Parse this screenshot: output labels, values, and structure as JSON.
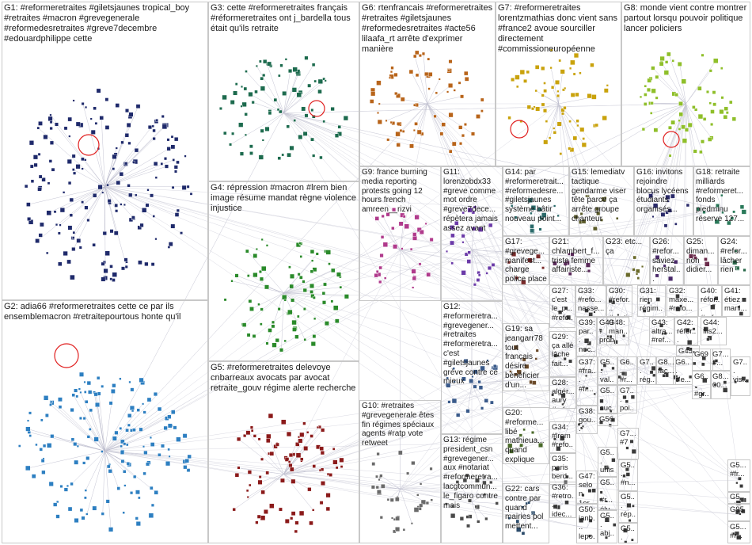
{
  "groups": [
    {
      "id": "G1",
      "label": "G1: #reformeretraites #giletsjaunes tropical_boy #retraites #macron #grevegenerale #reformedesretraites #greve7decembre #edouardphilippe cette",
      "color": "#1f2a6b"
    },
    {
      "id": "G2",
      "label": "G2: adia66 #reformeretraites cette ce par ils ensemblemacron #retraitepourtous honte qu'il",
      "color": "#2d7fc1"
    },
    {
      "id": "G3",
      "label": "G3: cette #reformeretraites français #réformeretraites ont j_bardella tous était qu'ils retraite",
      "color": "#1d6b4e"
    },
    {
      "id": "G4",
      "label": "G4: répression #macron #lrem bien image résume mandat règne violence injustice",
      "color": "#2a8a2a"
    },
    {
      "id": "G5",
      "label": "G5: #reformeretraites delevoye cnbarreaux avocats par avocat retraite_gouv régime alerte recherche",
      "color": "#8b1a1a"
    },
    {
      "id": "G6",
      "label": "G6: rtenfrancais #reformeretraites #retraites #giletsjaunes #reformedesretraites #acte56 lilaafa_rt arrête d'exprimer manière",
      "color": "#b8641a"
    },
    {
      "id": "G7",
      "label": "G7: #reformeretraites lorentzmathias donc vient sans #france2 avoue sourciller directement #commissioneuropéenne",
      "color": "#c9a20c"
    },
    {
      "id": "G8",
      "label": "G8: monde vient contre montrer partout lorsqu pouvoir politique lancer policiers",
      "color": "#8fbf2a"
    },
    {
      "id": "G9",
      "label": "G9: france burning media reporting protests going 12 hours french amreen__rizvi",
      "color": "#b03a8c"
    },
    {
      "id": "G10",
      "label": "G10: #retraites #grevegenerale êtes fin régimes spéciaux agents #ratp vote retweet",
      "color": "#6a6a6a"
    },
    {
      "id": "G11",
      "label": "G11: lorenzobdx33 #greve comme mot ordre #greve7dece... répètera jamais assez avant",
      "color": "#6b3aa8"
    },
    {
      "id": "G12",
      "label": "G12: #reformeretra... #grevegener... #retraites #reformeretra... c'est #giletsjaunes grève contre ce mieux",
      "color": "#3a5a8a"
    },
    {
      "id": "G13",
      "label": "G13: régime president_csn #grevegener... aux #notariat #reformeretra... lacgtcommun... le_figaro contre mais",
      "color": "#4a4a4a"
    },
    {
      "id": "G14",
      "label": "G14: par #reformeretrait... #reformedesre... #giletsjaunes système bâtir nouveau point...",
      "color": "#2a6a6a"
    },
    {
      "id": "G15",
      "label": "G15: lemediatv tactique gendarme viser tête parce ça arrête groupe chanteur",
      "color": "#5a5a2a"
    },
    {
      "id": "G16",
      "label": "G16: invitons rejoindre blocus lycéens étudiants organisés...",
      "color": "#2a2a6a"
    },
    {
      "id": "G17",
      "label": "G17: #grevege... manifest... charge police place république paris...",
      "color": "#7a2a2a"
    },
    {
      "id": "G18",
      "label": "G18: retraite milliards #reformeret... fonds piedminu réserve 127...",
      "color": "#2a7a5a"
    },
    {
      "id": "G19",
      "label": "G19: sa jeangarr78 tout français désire bénéficier d'un...",
      "color": "#6a4a2a"
    },
    {
      "id": "G20",
      "label": "G20: #reforme... libé mathieua... quand explique les...",
      "color": "#4a6a2a"
    },
    {
      "id": "G21",
      "label": "G21: chlambert_f... triste femme affairiste...",
      "color": "#5a2a5a"
    },
    {
      "id": "G22",
      "label": "G22: cars contre par quand mairies pol mettent...",
      "color": "#2a4a6a"
    },
    {
      "id": "G23",
      "label": "G23: etc... ça",
      "color": "#6a6a2a"
    },
    {
      "id": "G24",
      "label": "G24: #refor... lâcher rien",
      "color": "#2a6a4a"
    },
    {
      "id": "G25",
      "label": "G25: diman... non didier...",
      "color": "#6a2a4a"
    },
    {
      "id": "G26",
      "label": "G26: #refor... saviez herstal...",
      "color": "#4a2a6a"
    },
    {
      "id": "G27",
      "label": "G27: c'est le_p... #refo...",
      "color": "#3a3a3a"
    },
    {
      "id": "G28",
      "label": "G28: algér... aury #refo...",
      "color": "#3a3a3a"
    },
    {
      "id": "G29",
      "label": "G29: ça allé lâche fait...",
      "color": "#3a3a3a"
    },
    {
      "id": "G30",
      "label": "G30: #refor... #routi...",
      "color": "#3a3a3a"
    },
    {
      "id": "G31",
      "label": "G31: rien régim...",
      "color": "#3a3a3a"
    },
    {
      "id": "G32",
      "label": "G32: maxe... #refo...",
      "color": "#3a3a3a"
    },
    {
      "id": "G33",
      "label": "G33: #refo... nasse...",
      "color": "#3a3a3a"
    },
    {
      "id": "G34",
      "label": "G34: #lrem #refo...",
      "color": "#3a3a3a"
    },
    {
      "id": "G35",
      "label": "G35: paris berd...",
      "color": "#3a3a3a"
    },
    {
      "id": "G36",
      "label": "G36: #retro... idec...",
      "color": "#3a3a3a"
    },
    {
      "id": "G37",
      "label": "G37: #fra... #fr...",
      "color": "#3a3a3a"
    },
    {
      "id": "G38",
      "label": "G38: gou... exp...",
      "color": "#3a3a3a"
    },
    {
      "id": "G39",
      "label": "G39: par... noc...",
      "color": "#3a3a3a"
    },
    {
      "id": "G40",
      "label": "G40: réfor... #refo...",
      "color": "#3a3a3a"
    },
    {
      "id": "G41",
      "label": "G41: étiez mani...",
      "color": "#3a3a3a"
    },
    {
      "id": "G42",
      "label": "G42: réfor...",
      "color": "#3a3a3a"
    },
    {
      "id": "G43",
      "label": "G43: altra... #ref...",
      "color": "#3a3a3a"
    },
    {
      "id": "G44",
      "label": "G44: fils2...",
      "color": "#3a3a3a"
    },
    {
      "id": "G45",
      "label": "G45",
      "color": "#3a3a3a"
    },
    {
      "id": "G47",
      "label": "G47: selon 1er...",
      "color": "#3a3a3a"
    },
    {
      "id": "G48",
      "label": "G48: man...",
      "color": "#3a3a3a"
    },
    {
      "id": "G49",
      "label": "G49: prob...",
      "color": "#3a3a3a"
    },
    {
      "id": "G50",
      "label": "G50: ianb... lepo...",
      "color": "#3a3a3a"
    },
    {
      "id": "G56",
      "label": "G56",
      "color": "#3a3a3a"
    },
    {
      "id": "G69",
      "label": "G69",
      "color": "#3a3a3a"
    },
    {
      "id": "G95",
      "label": "G95",
      "color": "#3a3a3a"
    },
    {
      "id": "G7x",
      "label": "G7... #7",
      "color": "#3a3a3a"
    },
    {
      "id": "G5a",
      "label": "G5... val...",
      "color": "#3a3a3a"
    },
    {
      "id": "G5b",
      "label": "G5... suc...",
      "color": "#3a3a3a"
    },
    {
      "id": "G5c",
      "label": "G5... unis pe...",
      "color": "#3a3a3a"
    },
    {
      "id": "G5d",
      "label": "G5... #r... élu...",
      "color": "#3a3a3a"
    },
    {
      "id": "G5e",
      "label": "G5... abj...",
      "color": "#3a3a3a"
    },
    {
      "id": "G6a",
      "label": "G6... #r...",
      "color": "#3a3a3a"
    },
    {
      "id": "G6b",
      "label": "G6... c'e...",
      "color": "#3a3a3a"
    },
    {
      "id": "G6c",
      "label": "G6... #gr...",
      "color": "#3a3a3a"
    },
    {
      "id": "G7a",
      "label": "G7... poi...",
      "color": "#3a3a3a"
    },
    {
      "id": "G7b",
      "label": "G7... #...",
      "color": "#3a3a3a"
    },
    {
      "id": "G7c",
      "label": "G7... rég...",
      "color": "#3a3a3a"
    },
    {
      "id": "G7d",
      "label": "G7... vis...",
      "color": "#3a3a3a"
    },
    {
      "id": "G8a",
      "label": "G8... fac...",
      "color": "#3a3a3a"
    },
    {
      "id": "G8b",
      "label": "G8... 00...",
      "color": "#3a3a3a"
    },
    {
      "id": "G5f",
      "label": "G5... #n...",
      "color": "#3a3a3a"
    },
    {
      "id": "G5g",
      "label": "G5... rép...",
      "color": "#3a3a3a"
    },
    {
      "id": "G5h",
      "label": "G5... n'a...",
      "color": "#3a3a3a"
    },
    {
      "id": "G5i",
      "label": "G5... #fr...",
      "color": "#3a3a3a"
    },
    {
      "id": "G5j",
      "label": "G5... ré...",
      "color": "#3a3a3a"
    },
    {
      "id": "G5k",
      "label": "G5... #r...",
      "color": "#3a3a3a"
    }
  ]
}
